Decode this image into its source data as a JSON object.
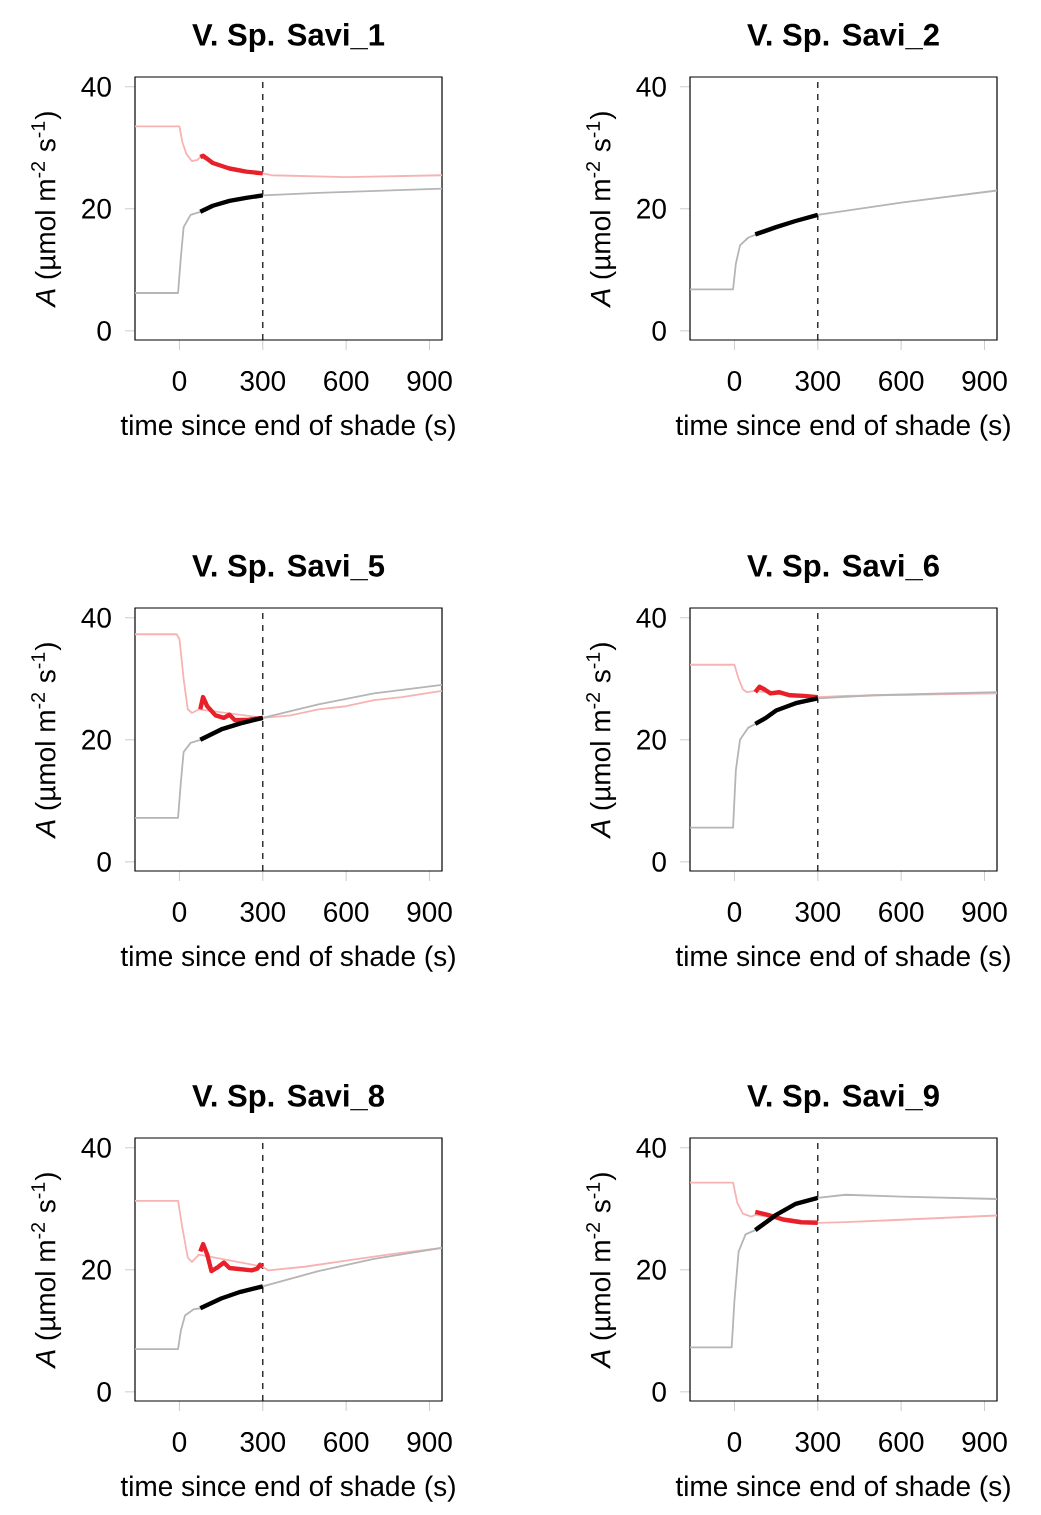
{
  "chart_data": [
    {
      "type": "line",
      "title": "V. Sp. Savi_1",
      "xlabel": "time since end of shade (s)",
      "ylabel": "*A* (µmol m$^{-2}$ s$^{-1}$)",
      "xlim": [
        -160,
        945
      ],
      "ylim": [
        -1.5,
        41.6
      ],
      "xticks": [
        0,
        300,
        600,
        900
      ],
      "yticks": [
        0,
        20,
        40
      ],
      "ref_lines": [
        {
          "axis": "x",
          "value": 300,
          "line_style": "dashed",
          "color": "#000000"
        }
      ],
      "series": [
        {
          "color": "#f7b3b3",
          "x": [
            -160,
            0,
            10,
            25,
            45,
            65,
            75,
            150,
            300,
            330,
            600,
            945
          ],
          "values": [
            33.5,
            33.5,
            31,
            29,
            27.8,
            28,
            28.5,
            27,
            25.8,
            25.5,
            25.2,
            25.5
          ]
        },
        {
          "color": "#b5b5b5",
          "x": [
            -160,
            -5,
            5,
            15,
            40,
            75,
            150,
            300,
            500,
            945
          ],
          "values": [
            6.2,
            6.2,
            12,
            17,
            19,
            19.5,
            21,
            22.2,
            22.6,
            23.3
          ]
        },
        {
          "color": "#e8202a",
          "x": [
            75,
            85,
            120,
            180,
            240,
            300
          ],
          "values": [
            28.5,
            28.7,
            27.5,
            26.6,
            26.1,
            25.8
          ]
        },
        {
          "color": "#000000",
          "x": [
            75,
            120,
            180,
            240,
            300
          ],
          "values": [
            19.5,
            20.5,
            21.3,
            21.8,
            22.2
          ]
        }
      ]
    },
    {
      "type": "line",
      "title": "V. Sp. Savi_2",
      "xlabel": "time since end of shade (s)",
      "ylabel": "*A* (µmol m$^{-2}$ s$^{-1}$)",
      "xlim": [
        -160,
        945
      ],
      "ylim": [
        -1.5,
        41.6
      ],
      "xticks": [
        0,
        300,
        600,
        900
      ],
      "yticks": [
        0,
        20,
        40
      ],
      "ref_lines": [
        {
          "axis": "x",
          "value": 300,
          "line_style": "dashed",
          "color": "#000000"
        }
      ],
      "series": [
        {
          "color": "#b5b5b5",
          "x": [
            -160,
            -5,
            5,
            20,
            50,
            80,
            150,
            300,
            600,
            945
          ],
          "values": [
            6.8,
            6.8,
            11,
            14,
            15.3,
            15.8,
            17,
            19,
            21,
            23
          ]
        },
        {
          "color": "#000000",
          "x": [
            75,
            150,
            220,
            300
          ],
          "values": [
            15.8,
            17,
            18,
            19
          ]
        }
      ]
    },
    {
      "type": "line",
      "title": "V. Sp. Savi_5",
      "xlabel": "time since end of shade (s)",
      "ylabel": "*A* (µmol m$^{-2}$ s$^{-1}$)",
      "xlim": [
        -160,
        945
      ],
      "ylim": [
        -1.5,
        41.6
      ],
      "xticks": [
        0,
        300,
        600,
        900
      ],
      "yticks": [
        0,
        20,
        40
      ],
      "ref_lines": [
        {
          "axis": "x",
          "value": 300,
          "line_style": "dashed",
          "color": "#000000"
        }
      ],
      "series": [
        {
          "color": "#f7b3b3",
          "x": [
            -160,
            -10,
            0,
            15,
            30,
            45,
            70,
            300,
            400,
            500,
            600,
            700,
            800,
            945
          ],
          "values": [
            37.3,
            37.3,
            36.5,
            30,
            25,
            24.4,
            25,
            23.6,
            24,
            25,
            25.5,
            26.5,
            27,
            28
          ]
        },
        {
          "color": "#b5b5b5",
          "x": [
            -160,
            -5,
            5,
            15,
            40,
            75,
            150,
            300,
            500,
            700,
            945
          ],
          "values": [
            7.2,
            7.2,
            13,
            18,
            19.5,
            20,
            21.7,
            23.6,
            25.8,
            27.6,
            29
          ]
        },
        {
          "color": "#e8202a",
          "x": [
            75,
            85,
            100,
            130,
            160,
            180,
            200,
            250,
            300
          ],
          "values": [
            25,
            27,
            25.5,
            24,
            23.6,
            24.1,
            23.2,
            23.3,
            23.6
          ]
        },
        {
          "color": "#000000",
          "x": [
            75,
            150,
            220,
            300
          ],
          "values": [
            20,
            21.7,
            22.7,
            23.6
          ]
        }
      ]
    },
    {
      "type": "line",
      "title": "V. Sp. Savi_6",
      "xlabel": "time since end of shade (s)",
      "ylabel": "*A* (µmol m$^{-2}$ s$^{-1}$)",
      "xlim": [
        -160,
        945
      ],
      "ylim": [
        -1.5,
        41.6
      ],
      "xticks": [
        0,
        300,
        600,
        900
      ],
      "yticks": [
        0,
        20,
        40
      ],
      "ref_lines": [
        {
          "axis": "x",
          "value": 300,
          "line_style": "dashed",
          "color": "#000000"
        }
      ],
      "series": [
        {
          "color": "#f7b3b3",
          "x": [
            -160,
            0,
            15,
            30,
            45,
            75,
            300,
            400,
            945
          ],
          "values": [
            32.3,
            32.3,
            30,
            28.3,
            27.8,
            28,
            27,
            27.2,
            27.6
          ]
        },
        {
          "color": "#b5b5b5",
          "x": [
            -160,
            -5,
            5,
            20,
            50,
            75,
            150,
            300,
            500,
            945
          ],
          "values": [
            5.6,
            5.6,
            15,
            20,
            22,
            22.6,
            24.8,
            26.8,
            27.3,
            27.8
          ]
        },
        {
          "color": "#e8202a",
          "x": [
            75,
            90,
            110,
            130,
            160,
            200,
            250,
            300
          ],
          "values": [
            27.8,
            28.7,
            28.2,
            27.6,
            27.8,
            27.3,
            27.2,
            27
          ]
        },
        {
          "color": "#000000",
          "x": [
            75,
            110,
            150,
            220,
            300
          ],
          "values": [
            22.6,
            23.5,
            24.8,
            26,
            26.8
          ]
        }
      ]
    },
    {
      "type": "line",
      "title": "V. Sp. Savi_8",
      "xlabel": "time since end of shade (s)",
      "ylabel": "*A* (µmol m$^{-2}$ s$^{-1}$)",
      "xlim": [
        -160,
        945
      ],
      "ylim": [
        -1.5,
        41.6
      ],
      "xticks": [
        0,
        300,
        600,
        900
      ],
      "yticks": [
        0,
        20,
        40
      ],
      "ref_lines": [
        {
          "axis": "x",
          "value": 300,
          "line_style": "dashed",
          "color": "#000000"
        }
      ],
      "series": [
        {
          "color": "#f7b3b3",
          "x": [
            -160,
            -5,
            10,
            30,
            45,
            70,
            300,
            320,
            450,
            600,
            750,
            945
          ],
          "values": [
            31.3,
            31.3,
            27,
            22,
            21.3,
            22.5,
            20.5,
            19.9,
            20.5,
            21.5,
            22.5,
            23.6
          ]
        },
        {
          "color": "#b5b5b5",
          "x": [
            -160,
            -5,
            5,
            20,
            50,
            75,
            150,
            300,
            500,
            700,
            945
          ],
          "values": [
            7,
            7,
            10,
            12.5,
            13.5,
            13.7,
            15.3,
            17.3,
            19.8,
            21.8,
            23.6
          ]
        },
        {
          "color": "#e8202a",
          "x": [
            75,
            85,
            100,
            115,
            140,
            160,
            180,
            220,
            260,
            280,
            290,
            300
          ],
          "values": [
            23,
            24.2,
            22.5,
            19.8,
            20.5,
            21.2,
            20.3,
            20.1,
            19.9,
            20.2,
            20.8,
            20.5
          ]
        },
        {
          "color": "#000000",
          "x": [
            75,
            150,
            220,
            300
          ],
          "values": [
            13.7,
            15.3,
            16.4,
            17.3
          ]
        }
      ]
    },
    {
      "type": "line",
      "title": "V. Sp. Savi_9",
      "xlabel": "time since end of shade (s)",
      "ylabel": "*A* (µmol m$^{-2}$ s$^{-1}$)",
      "xlim": [
        -160,
        945
      ],
      "ylim": [
        -1.5,
        41.6
      ],
      "xticks": [
        0,
        300,
        600,
        900
      ],
      "yticks": [
        0,
        20,
        40
      ],
      "ref_lines": [
        {
          "axis": "x",
          "value": 300,
          "line_style": "dashed",
          "color": "#000000"
        }
      ],
      "series": [
        {
          "color": "#f7b3b3",
          "x": [
            -160,
            -5,
            10,
            30,
            60,
            75,
            300,
            400,
            600,
            945
          ],
          "values": [
            34.3,
            34.3,
            31,
            29.2,
            28.7,
            29,
            27.7,
            27.8,
            28.2,
            28.9
          ]
        },
        {
          "color": "#b5b5b5",
          "x": [
            -160,
            -10,
            0,
            15,
            40,
            75,
            150,
            220,
            300,
            400,
            600,
            945
          ],
          "values": [
            7.3,
            7.3,
            15,
            23,
            25.8,
            26.5,
            29,
            30.8,
            31.8,
            32.3,
            32,
            31.6
          ]
        },
        {
          "color": "#e8202a",
          "x": [
            75,
            120,
            180,
            240,
            300
          ],
          "values": [
            29.5,
            29,
            28.2,
            27.8,
            27.7
          ]
        },
        {
          "color": "#000000",
          "x": [
            75,
            150,
            220,
            300
          ],
          "values": [
            26.5,
            29,
            30.8,
            31.8
          ]
        }
      ]
    }
  ]
}
